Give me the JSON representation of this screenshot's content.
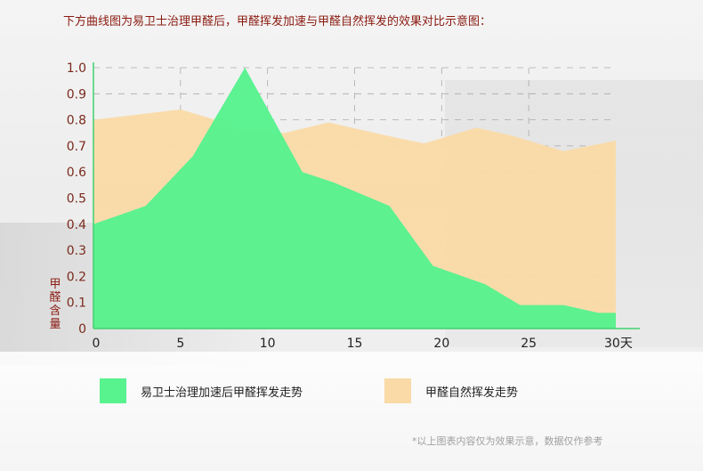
{
  "title": "下方曲线图为易卫士治理甲醛后，甲醛挥发加速与甲醛自然挥发的效果对比示意图：",
  "chart_data": {
    "type": "area",
    "ylabel": "甲醛含量",
    "xlabel": "",
    "ylim": [
      0,
      1.0
    ],
    "xlim": [
      0,
      30
    ],
    "y_ticks": [
      "0",
      "0.1",
      "0.2",
      "0.3",
      "0.4",
      "0.5",
      "0.6",
      "0.7",
      "0.8",
      "0.9",
      "1.0"
    ],
    "x_ticks": [
      "0",
      "5",
      "10",
      "15",
      "20",
      "25",
      "30天"
    ],
    "grid": true,
    "legend_position": "bottom",
    "series": [
      {
        "name": "甲醛自然挥发走势",
        "color": "#fadaa6",
        "x": [
          0,
          5,
          7,
          8.5,
          11,
          13.5,
          17.5,
          19,
          22,
          24,
          27,
          30
        ],
        "y": [
          0.8,
          0.84,
          0.8,
          0.75,
          0.75,
          0.79,
          0.73,
          0.71,
          0.77,
          0.74,
          0.68,
          0.72
        ]
      },
      {
        "name": "易卫士治理加速后甲醛挥发走势",
        "color": "#58f28e",
        "x": [
          0,
          3,
          5.7,
          8.7,
          12,
          13.8,
          17,
          19.5,
          22.5,
          24.5,
          27,
          29,
          30
        ],
        "y": [
          0.4,
          0.47,
          0.66,
          1.0,
          0.6,
          0.56,
          0.47,
          0.24,
          0.17,
          0.09,
          0.09,
          0.06,
          0.06
        ]
      }
    ]
  },
  "legend": [
    {
      "label": "易卫士治理加速后甲醛挥发走势",
      "color": "#58f28e"
    },
    {
      "label": "甲醛自然挥发走势",
      "color": "#fadaa6"
    }
  ],
  "disclaimer": "*以上图表内容仅为效果示意，数据仅作参考"
}
